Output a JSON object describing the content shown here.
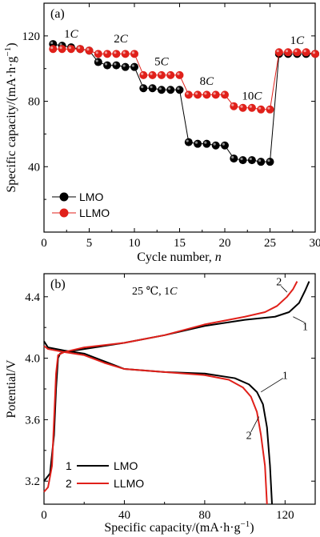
{
  "chart_data": [
    {
      "type": "line",
      "panel_label": "(a)",
      "xlabel": "Cycle number, ",
      "xlabel_italic": "n",
      "ylabel": "Specific capacity/(mA·h·g",
      "ylabel_sup": "−1",
      "ylabel_close": ")",
      "xlim": [
        0,
        30
      ],
      "ylim": [
        0,
        140
      ],
      "xticks": [
        "0",
        "5",
        "10",
        "15",
        "20",
        "25",
        "30"
      ],
      "yticks": [
        "40",
        "80",
        "120"
      ],
      "grid": false,
      "legend_position": "bottom-left",
      "rate_labels": [
        {
          "num": "1",
          "unit": "C",
          "cycle": 3,
          "value": 119
        },
        {
          "num": "2",
          "unit": "C",
          "cycle": 8.5,
          "value": 116
        },
        {
          "num": "5",
          "unit": "C",
          "cycle": 13,
          "value": 102
        },
        {
          "num": "8",
          "unit": "C",
          "cycle": 18,
          "value": 90
        },
        {
          "num": "10",
          "unit": "C",
          "cycle": 23,
          "value": 81
        },
        {
          "num": "1",
          "unit": "C",
          "cycle": 28,
          "value": 115
        }
      ],
      "series": [
        {
          "name": "LMO",
          "color": "#000000",
          "x": [
            1,
            2,
            3,
            4,
            5,
            6,
            7,
            8,
            9,
            10,
            11,
            12,
            13,
            14,
            15,
            16,
            17,
            18,
            19,
            20,
            21,
            22,
            23,
            24,
            25,
            26,
            27,
            28,
            29,
            30
          ],
          "values": [
            115,
            114,
            113,
            112,
            111,
            104,
            102,
            102,
            101,
            101,
            88,
            88,
            87,
            87,
            87,
            55,
            54,
            54,
            53,
            53,
            45,
            44,
            44,
            43,
            43,
            109,
            109,
            109,
            109,
            109
          ]
        },
        {
          "name": "LLMO",
          "color": "#e0201a",
          "x": [
            1,
            2,
            3,
            4,
            5,
            6,
            7,
            8,
            9,
            10,
            11,
            12,
            13,
            14,
            15,
            16,
            17,
            18,
            19,
            20,
            21,
            22,
            23,
            24,
            25,
            26,
            27,
            28,
            29,
            30
          ],
          "values": [
            112,
            112,
            112,
            112,
            111,
            109,
            109,
            109,
            109,
            109,
            96,
            96,
            96,
            96,
            96,
            84,
            84,
            84,
            84,
            84,
            77,
            76,
            76,
            75,
            75,
            110,
            110,
            110,
            110,
            109
          ]
        }
      ]
    },
    {
      "type": "line",
      "panel_label": "(b)",
      "condition_text": "25 ℃, 1",
      "condition_italic": "C",
      "xlabel": "Specific capacity/(mA·h·g",
      "xlabel_sup": "−1",
      "xlabel_close": ")",
      "ylabel": "Potential/V",
      "xlim": [
        0,
        135
      ],
      "ylim": [
        3.05,
        4.55
      ],
      "xticks": [
        "0",
        "40",
        "80",
        "120"
      ],
      "yticks": [
        "3.2",
        "3.6",
        "4.0",
        "4.4"
      ],
      "grid": false,
      "legend_position": "bottom-left",
      "series": [
        {
          "name": "LMO",
          "number": "1",
          "color": "#000000",
          "charge": [
            [
              0,
              3.2
            ],
            [
              3,
              3.25
            ],
            [
              5,
              3.5
            ],
            [
              6,
              3.8
            ],
            [
              7,
              4.0
            ],
            [
              8,
              4.03
            ],
            [
              10,
              4.04
            ],
            [
              20,
              4.06
            ],
            [
              40,
              4.1
            ],
            [
              60,
              4.15
            ],
            [
              80,
              4.21
            ],
            [
              100,
              4.25
            ],
            [
              115,
              4.27
            ],
            [
              122,
              4.3
            ],
            [
              127,
              4.36
            ],
            [
              130,
              4.44
            ],
            [
              132,
              4.5
            ]
          ],
          "discharge": [
            [
              0,
              4.11
            ],
            [
              2,
              4.07
            ],
            [
              10,
              4.05
            ],
            [
              20,
              4.03
            ],
            [
              30,
              3.98
            ],
            [
              40,
              3.93
            ],
            [
              60,
              3.91
            ],
            [
              80,
              3.9
            ],
            [
              95,
              3.87
            ],
            [
              102,
              3.83
            ],
            [
              106,
              3.78
            ],
            [
              109,
              3.7
            ],
            [
              111,
              3.55
            ],
            [
              112.5,
              3.3
            ],
            [
              113.5,
              3.05
            ]
          ]
        },
        {
          "name": "LLMO",
          "number": "2",
          "color": "#e0201a",
          "charge": [
            [
              0,
              3.13
            ],
            [
              2,
              3.16
            ],
            [
              4,
              3.3
            ],
            [
              5,
              3.6
            ],
            [
              6,
              3.9
            ],
            [
              7,
              4.02
            ],
            [
              10,
              4.04
            ],
            [
              20,
              4.07
            ],
            [
              40,
              4.1
            ],
            [
              60,
              4.15
            ],
            [
              80,
              4.22
            ],
            [
              100,
              4.27
            ],
            [
              110,
              4.3
            ],
            [
              116,
              4.34
            ],
            [
              121,
              4.4
            ],
            [
              124,
              4.45
            ],
            [
              126,
              4.5
            ]
          ],
          "discharge": [
            [
              0,
              4.08
            ],
            [
              2,
              4.06
            ],
            [
              10,
              4.04
            ],
            [
              20,
              4.02
            ],
            [
              30,
              3.97
            ],
            [
              40,
              3.93
            ],
            [
              60,
              3.91
            ],
            [
              80,
              3.89
            ],
            [
              92,
              3.86
            ],
            [
              99,
              3.81
            ],
            [
              103,
              3.75
            ],
            [
              106,
              3.65
            ],
            [
              108,
              3.5
            ],
            [
              110,
              3.3
            ],
            [
              111,
              3.05
            ]
          ]
        }
      ],
      "curve_labels": [
        {
          "text": "1",
          "x": 130,
          "y": 4.21
        },
        {
          "text": "2",
          "x": 117,
          "y": 4.5
        },
        {
          "text": "1",
          "x": 120,
          "y": 3.89
        },
        {
          "text": "2",
          "x": 102,
          "y": 3.5
        }
      ]
    }
  ]
}
